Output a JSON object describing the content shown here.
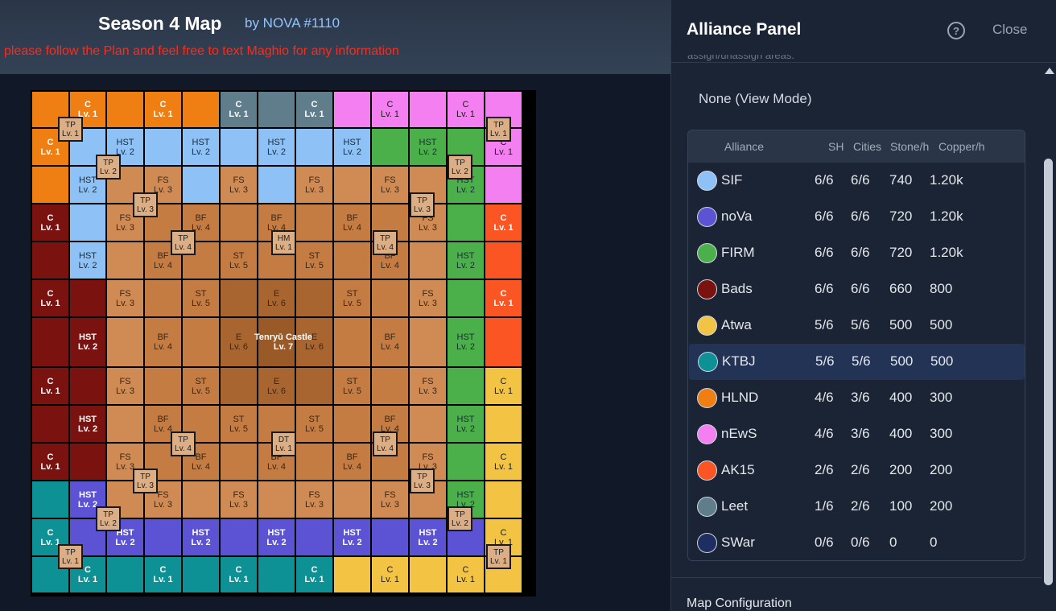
{
  "header": {
    "title": "Season 4 Map",
    "author": "by NOVA #1110",
    "notice": "please follow the Plan and feel free to text Maghio for any information"
  },
  "colors": {
    "SIF": "#8ec2f6",
    "noVa": "#5b52d4",
    "FIRM": "#4bb049",
    "Bads": "#7a1210",
    "Atwa": "#f3c344",
    "KTBJ": "#0e9194",
    "HLND": "#ef7f13",
    "nEwS": "#f47ff1",
    "AK15": "#fb5523",
    "Leet": "#5f7d8b",
    "SWar": "#1e2d62",
    "fs": "#d08b54",
    "mid": "#c57c43",
    "inner": "#a9652f",
    "castle": "#9a5a28"
  },
  "map": {
    "rows": [
      [
        {
          "team": "HLND"
        },
        {
          "team": "HLND",
          "l1": "C",
          "l2": "Lv. 1"
        },
        {
          "team": "HLND"
        },
        {
          "team": "HLND",
          "l1": "C",
          "l2": "Lv. 1"
        },
        {
          "team": "HLND"
        },
        {
          "team": "Leet",
          "l1": "C",
          "l2": "Lv. 1"
        },
        {
          "team": "Leet"
        },
        {
          "team": "Leet",
          "l1": "C",
          "l2": "Lv. 1"
        },
        {
          "team": "nEwS"
        },
        {
          "team": "nEwS",
          "l1": "C",
          "l2": "Lv. 1"
        },
        {
          "team": "nEwS"
        },
        {
          "team": "nEwS",
          "l1": "C",
          "l2": "Lv. 1"
        },
        {
          "team": "nEwS"
        }
      ],
      [
        {
          "team": "HLND",
          "l1": "C",
          "l2": "Lv. 1"
        },
        {
          "team": "SIF"
        },
        {
          "team": "SIF",
          "l1": "HST",
          "l2": "Lv. 2"
        },
        {
          "team": "SIF"
        },
        {
          "team": "SIF",
          "l1": "HST",
          "l2": "Lv. 2"
        },
        {
          "team": "SIF"
        },
        {
          "team": "SIF",
          "l1": "HST",
          "l2": "Lv. 2"
        },
        {
          "team": "SIF"
        },
        {
          "team": "SIF",
          "l1": "HST",
          "l2": "Lv. 2"
        },
        {
          "team": "FIRM"
        },
        {
          "team": "FIRM",
          "l1": "HST",
          "l2": "Lv. 2"
        },
        {
          "team": "FIRM"
        },
        {
          "team": "nEwS",
          "l1": "C",
          "l2": "Lv. 1"
        }
      ],
      [
        {
          "team": "HLND"
        },
        {
          "team": "SIF",
          "l1": "HST",
          "l2": "Lv. 2"
        },
        {
          "team": "fs"
        },
        {
          "team": "fs",
          "l1": "FS",
          "l2": "Lv. 3"
        },
        {
          "team": "SIF"
        },
        {
          "team": "fs",
          "l1": "FS",
          "l2": "Lv. 3"
        },
        {
          "team": "SIF"
        },
        {
          "team": "fs",
          "l1": "FS",
          "l2": "Lv. 3"
        },
        {
          "team": "fs"
        },
        {
          "team": "fs",
          "l1": "FS",
          "l2": "Lv. 3"
        },
        {
          "team": "fs"
        },
        {
          "team": "FIRM",
          "l1": "HST",
          "l2": "Lv. 2"
        },
        {
          "team": "nEwS"
        }
      ],
      [
        {
          "team": "Bads",
          "l1": "C",
          "l2": "Lv. 1"
        },
        {
          "team": "SIF"
        },
        {
          "team": "fs",
          "l1": "FS",
          "l2": "Lv. 3"
        },
        {
          "team": "mid"
        },
        {
          "team": "mid",
          "l1": "BF",
          "l2": "Lv. 4"
        },
        {
          "team": "mid"
        },
        {
          "team": "mid",
          "l1": "BF",
          "l2": "Lv. 4"
        },
        {
          "team": "mid"
        },
        {
          "team": "mid",
          "l1": "BF",
          "l2": "Lv. 4"
        },
        {
          "team": "mid"
        },
        {
          "team": "fs",
          "l1": "FS",
          "l2": "Lv. 3"
        },
        {
          "team": "FIRM"
        },
        {
          "team": "AK15",
          "l1": "C",
          "l2": "Lv. 1"
        }
      ],
      [
        {
          "team": "Bads"
        },
        {
          "team": "SIF",
          "l1": "HST",
          "l2": "Lv. 2"
        },
        {
          "team": "fs"
        },
        {
          "team": "mid",
          "l1": "BF",
          "l2": "Lv. 4"
        },
        {
          "team": "mid"
        },
        {
          "team": "mid",
          "l1": "ST",
          "l2": "Lv. 5"
        },
        {
          "team": "mid"
        },
        {
          "team": "mid",
          "l1": "ST",
          "l2": "Lv. 5"
        },
        {
          "team": "mid"
        },
        {
          "team": "mid",
          "l1": "BF",
          "l2": "Lv. 4"
        },
        {
          "team": "fs"
        },
        {
          "team": "FIRM",
          "l1": "HST",
          "l2": "Lv. 2"
        },
        {
          "team": "AK15"
        }
      ],
      [
        {
          "team": "Bads",
          "l1": "C",
          "l2": "Lv. 1"
        },
        {
          "team": "Bads"
        },
        {
          "team": "fs",
          "l1": "FS",
          "l2": "Lv. 3"
        },
        {
          "team": "mid"
        },
        {
          "team": "mid",
          "l1": "ST",
          "l2": "Lv. 5"
        },
        {
          "team": "inner"
        },
        {
          "team": "inner",
          "l1": "E",
          "l2": "Lv. 6"
        },
        {
          "team": "inner"
        },
        {
          "team": "mid",
          "l1": "ST",
          "l2": "Lv. 5"
        },
        {
          "team": "mid"
        },
        {
          "team": "fs",
          "l1": "FS",
          "l2": "Lv. 3"
        },
        {
          "team": "FIRM"
        },
        {
          "team": "AK15",
          "l1": "C",
          "l2": "Lv. 1"
        }
      ],
      [
        {
          "team": "Bads"
        },
        {
          "team": "Bads",
          "l1": "HST",
          "l2": "Lv. 2"
        },
        {
          "team": "fs"
        },
        {
          "team": "mid",
          "l1": "BF",
          "l2": "Lv. 4"
        },
        {
          "team": "mid"
        },
        {
          "team": "inner",
          "l1": "E",
          "l2": "Lv. 6"
        },
        {
          "team": "castle"
        },
        {
          "team": "inner",
          "l1": "E",
          "l2": "Lv. 6"
        },
        {
          "team": "mid"
        },
        {
          "team": "mid",
          "l1": "BF",
          "l2": "Lv. 4"
        },
        {
          "team": "fs"
        },
        {
          "team": "FIRM",
          "l1": "HST",
          "l2": "Lv. 2"
        },
        {
          "team": "AK15"
        }
      ],
      [
        {
          "team": "Bads",
          "l1": "C",
          "l2": "Lv. 1"
        },
        {
          "team": "Bads"
        },
        {
          "team": "fs",
          "l1": "FS",
          "l2": "Lv. 3"
        },
        {
          "team": "mid"
        },
        {
          "team": "mid",
          "l1": "ST",
          "l2": "Lv. 5"
        },
        {
          "team": "inner"
        },
        {
          "team": "inner",
          "l1": "E",
          "l2": "Lv. 6"
        },
        {
          "team": "inner"
        },
        {
          "team": "mid",
          "l1": "ST",
          "l2": "Lv. 5"
        },
        {
          "team": "mid"
        },
        {
          "team": "fs",
          "l1": "FS",
          "l2": "Lv. 3"
        },
        {
          "team": "FIRM"
        },
        {
          "team": "Atwa",
          "l1": "C",
          "l2": "Lv. 1"
        }
      ],
      [
        {
          "team": "Bads"
        },
        {
          "team": "Bads",
          "l1": "HST",
          "l2": "Lv. 2"
        },
        {
          "team": "fs"
        },
        {
          "team": "mid",
          "l1": "BF",
          "l2": "Lv. 4"
        },
        {
          "team": "mid"
        },
        {
          "team": "mid",
          "l1": "ST",
          "l2": "Lv. 5"
        },
        {
          "team": "mid"
        },
        {
          "team": "mid",
          "l1": "ST",
          "l2": "Lv. 5"
        },
        {
          "team": "mid"
        },
        {
          "team": "mid",
          "l1": "BF",
          "l2": "Lv. 4"
        },
        {
          "team": "fs"
        },
        {
          "team": "FIRM",
          "l1": "HST",
          "l2": "Lv. 2"
        },
        {
          "team": "Atwa"
        }
      ],
      [
        {
          "team": "Bads",
          "l1": "C",
          "l2": "Lv. 1"
        },
        {
          "team": "Bads"
        },
        {
          "team": "fs",
          "l1": "FS",
          "l2": "Lv. 3"
        },
        {
          "team": "mid"
        },
        {
          "team": "mid",
          "l1": "BF",
          "l2": "Lv. 4"
        },
        {
          "team": "mid"
        },
        {
          "team": "mid",
          "l1": "BF",
          "l2": "Lv. 4"
        },
        {
          "team": "mid"
        },
        {
          "team": "mid",
          "l1": "BF",
          "l2": "Lv. 4"
        },
        {
          "team": "mid"
        },
        {
          "team": "fs",
          "l1": "FS",
          "l2": "Lv. 3"
        },
        {
          "team": "FIRM"
        },
        {
          "team": "Atwa",
          "l1": "C",
          "l2": "Lv. 1"
        }
      ],
      [
        {
          "team": "KTBJ"
        },
        {
          "team": "noVa",
          "l1": "HST",
          "l2": "Lv. 2"
        },
        {
          "team": "fs"
        },
        {
          "team": "fs",
          "l1": "FS",
          "l2": "Lv. 3"
        },
        {
          "team": "fs"
        },
        {
          "team": "fs",
          "l1": "FS",
          "l2": "Lv. 3"
        },
        {
          "team": "fs"
        },
        {
          "team": "fs",
          "l1": "FS",
          "l2": "Lv. 3"
        },
        {
          "team": "fs"
        },
        {
          "team": "fs",
          "l1": "FS",
          "l2": "Lv. 3"
        },
        {
          "team": "fs"
        },
        {
          "team": "FIRM",
          "l1": "HST",
          "l2": "Lv. 2"
        },
        {
          "team": "Atwa"
        }
      ],
      [
        {
          "team": "KTBJ",
          "l1": "C",
          "l2": "Lv. 1"
        },
        {
          "team": "noVa"
        },
        {
          "team": "noVa",
          "l1": "HST",
          "l2": "Lv. 2"
        },
        {
          "team": "noVa"
        },
        {
          "team": "noVa",
          "l1": "HST",
          "l2": "Lv. 2"
        },
        {
          "team": "noVa"
        },
        {
          "team": "noVa",
          "l1": "HST",
          "l2": "Lv. 2"
        },
        {
          "team": "noVa"
        },
        {
          "team": "noVa",
          "l1": "HST",
          "l2": "Lv. 2"
        },
        {
          "team": "noVa"
        },
        {
          "team": "noVa",
          "l1": "HST",
          "l2": "Lv. 2"
        },
        {
          "team": "noVa"
        },
        {
          "team": "Atwa",
          "l1": "C",
          "l2": "Lv. 1"
        }
      ],
      [
        {
          "team": "KTBJ"
        },
        {
          "team": "KTBJ",
          "l1": "C",
          "l2": "Lv. 1"
        },
        {
          "team": "KTBJ"
        },
        {
          "team": "KTBJ",
          "l1": "C",
          "l2": "Lv. 1"
        },
        {
          "team": "KTBJ"
        },
        {
          "team": "KTBJ",
          "l1": "C",
          "l2": "Lv. 1"
        },
        {
          "team": "KTBJ"
        },
        {
          "team": "KTBJ",
          "l1": "C",
          "l2": "Lv. 1"
        },
        {
          "team": "Atwa"
        },
        {
          "team": "Atwa",
          "l1": "C",
          "l2": "Lv. 1"
        },
        {
          "team": "Atwa"
        },
        {
          "team": "Atwa",
          "l1": "C",
          "l2": "Lv. 1"
        },
        {
          "team": "Atwa"
        }
      ]
    ],
    "castle": {
      "l1": "Tenryū Castle",
      "l2": "Lv. 7"
    },
    "markers": [
      {
        "l1": "TP",
        "l2": "Lv. 1"
      },
      {
        "l1": "TP",
        "l2": "Lv. 1"
      },
      {
        "l1": "TP",
        "l2": "Lv. 1"
      },
      {
        "l1": "TP",
        "l2": "Lv. 1"
      },
      {
        "l1": "TP",
        "l2": "Lv. 2"
      },
      {
        "l1": "TP",
        "l2": "Lv. 2"
      },
      {
        "l1": "TP",
        "l2": "Lv. 2"
      },
      {
        "l1": "TP",
        "l2": "Lv. 2"
      },
      {
        "l1": "TP",
        "l2": "Lv. 3"
      },
      {
        "l1": "TP",
        "l2": "Lv. 3"
      },
      {
        "l1": "TP",
        "l2": "Lv. 3"
      },
      {
        "l1": "TP",
        "l2": "Lv. 3"
      },
      {
        "l1": "TP",
        "l2": "Lv. 4"
      },
      {
        "l1": "TP",
        "l2": "Lv. 4"
      },
      {
        "l1": "TP",
        "l2": "Lv. 4"
      },
      {
        "l1": "TP",
        "l2": "Lv. 4"
      },
      {
        "l1": "HM",
        "l2": "Lv. 1"
      },
      {
        "l1": "DT",
        "l2": "Lv. 1"
      }
    ]
  },
  "panel": {
    "title": "Alliance Panel",
    "help_icon": "?",
    "close_label": "Close",
    "cut_text": "assign/unassign areas.",
    "mode": "None (View Mode)",
    "table": {
      "headers": {
        "alliance": "Alliance",
        "sh": "SH",
        "cities": "Cities",
        "stone": "Stone/h",
        "copper": "Copper/h"
      },
      "rows": [
        {
          "name": "SIF",
          "sh": "6/6",
          "cities": "6/6",
          "stone": "740",
          "copper": "1.20k",
          "color": "#8ec2f6"
        },
        {
          "name": "noVa",
          "sh": "6/6",
          "cities": "6/6",
          "stone": "720",
          "copper": "1.20k",
          "color": "#5b52d4"
        },
        {
          "name": "FIRM",
          "sh": "6/6",
          "cities": "6/6",
          "stone": "720",
          "copper": "1.20k",
          "color": "#4bb049"
        },
        {
          "name": "Bads",
          "sh": "6/6",
          "cities": "6/6",
          "stone": "660",
          "copper": "800",
          "color": "#7a1210"
        },
        {
          "name": "Atwa",
          "sh": "5/6",
          "cities": "5/6",
          "stone": "500",
          "copper": "500",
          "color": "#f3c344"
        },
        {
          "name": "KTBJ",
          "sh": "5/6",
          "cities": "5/6",
          "stone": "500",
          "copper": "500",
          "color": "#0e9194"
        },
        {
          "name": "HLND",
          "sh": "4/6",
          "cities": "3/6",
          "stone": "400",
          "copper": "300",
          "color": "#ef7f13"
        },
        {
          "name": "nEwS",
          "sh": "4/6",
          "cities": "3/6",
          "stone": "400",
          "copper": "300",
          "color": "#f47ff1"
        },
        {
          "name": "AK15",
          "sh": "2/6",
          "cities": "2/6",
          "stone": "200",
          "copper": "200",
          "color": "#fb5523"
        },
        {
          "name": "Leet",
          "sh": "1/6",
          "cities": "2/6",
          "stone": "100",
          "copper": "200",
          "color": "#5f7d8b"
        },
        {
          "name": "SWar",
          "sh": "0/6",
          "cities": "0/6",
          "stone": "0",
          "copper": "0",
          "color": "#1e2d62"
        }
      ]
    },
    "map_config": "Map Configuration"
  }
}
